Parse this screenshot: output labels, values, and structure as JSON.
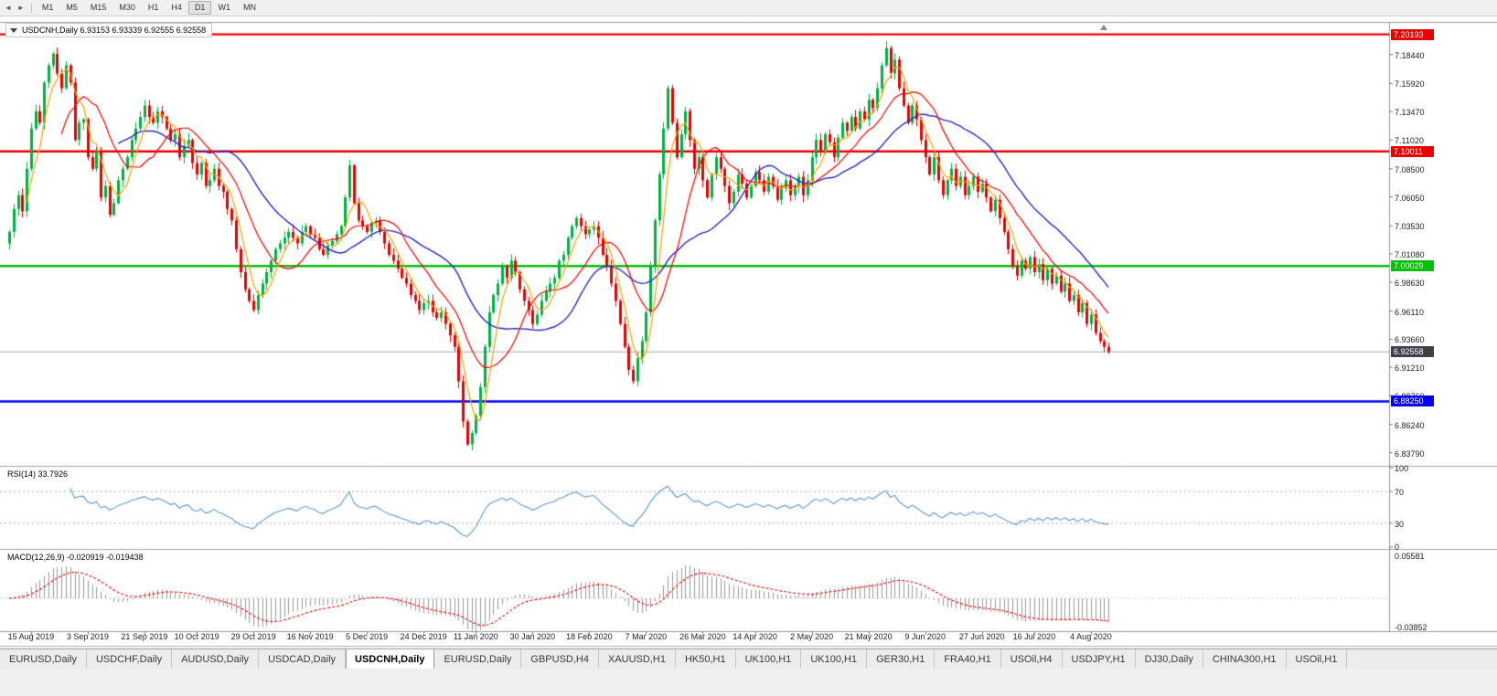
{
  "toolbar": {
    "icons": {
      "back": "◄",
      "forward": "►"
    },
    "timeframes": [
      "M1",
      "M5",
      "M15",
      "M30",
      "H1",
      "H4",
      "D1",
      "W1",
      "MN"
    ],
    "active_timeframe": "D1"
  },
  "chart": {
    "symbol": "USDCNH",
    "period": "Daily",
    "title_text": "USDCNH,Daily 6.93153 6.93339 6.92555 6.92558",
    "ohlc": {
      "open": "6.93153",
      "high": "6.93339",
      "low": "6.92555",
      "close": "6.92558"
    }
  },
  "price_axis_labels": [
    "7.18440",
    "7.15920",
    "7.13470",
    "7.11020",
    "7.08500",
    "7.06050",
    "7.03530",
    "7.01080",
    "6.98630",
    "6.96110",
    "6.93660",
    "6.91210",
    "6.88760",
    "6.86240",
    "6.83790"
  ],
  "levels": [
    {
      "label": "7.20193",
      "value": 7.20193,
      "color": "#e80000"
    },
    {
      "label": "7.10011",
      "value": 7.10011,
      "color": "#e80000"
    },
    {
      "label": "7.00029",
      "value": 7.00029,
      "color": "#00c000"
    },
    {
      "label": "6.88250",
      "value": 6.8825,
      "color": "#0000f0"
    }
  ],
  "current_price": {
    "label": "6.92558",
    "value": 6.92558,
    "bg": "#3c424a"
  },
  "time_axis_labels": [
    "15 Aug 2019",
    "3 Sep 2019",
    "21 Sep 2019",
    "10 Oct 2019",
    "29 Oct 2019",
    "16 Nov 2019",
    "5 Dec 2019",
    "24 Dec 2019",
    "11 Jan 2020",
    "30 Jan 2020",
    "18 Feb 2020",
    "7 Mar 2020",
    "26 Mar 2020",
    "14 Apr 2020",
    "2 May 2020",
    "21 May 2020",
    "9 Jun 2020",
    "27 Jun 2020",
    "16 Jul 2020",
    "4 Aug 2020"
  ],
  "rsi": {
    "label": "RSI(14) 33.7926",
    "period": 14,
    "last_value": "33.7926",
    "scale": [
      {
        "label": "100",
        "value": 100
      },
      {
        "label": "70",
        "value": 70
      },
      {
        "label": "30",
        "value": 30
      },
      {
        "label": "0",
        "value": 0
      }
    ],
    "dashed_levels": [
      70,
      30
    ]
  },
  "macd": {
    "label": "MACD(12,26,9) -0.020919 -0.019438",
    "params": [
      12,
      26,
      9
    ],
    "values": [
      "-0.020919",
      "-0.019438"
    ],
    "scale_top": {
      "label": "0.05581",
      "value": 0.05581
    },
    "scale_bottom": {
      "label": "-0.03852",
      "value": -0.03852
    }
  },
  "tabs": {
    "items": [
      "EURUSD,Daily",
      "USDCHF,Daily",
      "AUDUSD,Daily",
      "USDCAD,Daily",
      "USDCNH,Daily",
      "EURUSD,Daily",
      "GBPUSD,H4",
      "XAUUSD,H1",
      "HK50,H1",
      "UK100,H1",
      "UK100,H1",
      "GER30,H1",
      "FRA40,H1",
      "USOil,H4",
      "USDJPY,H1",
      "DJ30,Daily",
      "CHINA300,H1",
      "USOil,H1"
    ],
    "active_index": 4
  },
  "chart_data": {
    "type": "candlestick",
    "symbol": "USDCNH",
    "timeframe": "Daily",
    "title": "USDCNH,Daily",
    "y_range": [
      6.828,
      7.212
    ],
    "first_open": 7.02,
    "closes": [
      7.03,
      7.05,
      7.062,
      7.048,
      7.085,
      7.12,
      7.135,
      7.125,
      7.16,
      7.175,
      7.185,
      7.168,
      7.155,
      7.175,
      7.16,
      7.11,
      7.125,
      7.128,
      7.095,
      7.085,
      7.1,
      7.06,
      7.07,
      7.045,
      7.055,
      7.075,
      7.085,
      7.095,
      7.11,
      7.12,
      7.13,
      7.14,
      7.13,
      7.125,
      7.135,
      7.13,
      7.12,
      7.11,
      7.115,
      7.095,
      7.105,
      7.11,
      7.09,
      7.08,
      7.09,
      7.07,
      7.075,
      7.085,
      7.07,
      7.065,
      7.05,
      7.04,
      7.015,
      6.995,
      6.98,
      6.97,
      6.962,
      6.975,
      6.985,
      6.995,
      7.005,
      7.015,
      7.02,
      7.025,
      7.03,
      7.025,
      7.02,
      7.03,
      7.035,
      7.028,
      7.025,
      7.015,
      7.01,
      7.018,
      7.022,
      7.028,
      7.035,
      7.06,
      7.088,
      7.055,
      7.04,
      7.035,
      7.03,
      7.038,
      7.04,
      7.03,
      7.02,
      7.01,
      7.005,
      6.998,
      6.99,
      6.985,
      6.975,
      6.97,
      6.962,
      6.968,
      6.97,
      6.96,
      6.955,
      6.96,
      6.95,
      6.94,
      6.93,
      6.9,
      6.865,
      6.845,
      6.855,
      6.87,
      6.895,
      6.93,
      6.96,
      6.975,
      6.985,
      7.0,
      6.99,
      7.005,
      6.995,
      6.98,
      6.97,
      6.962,
      6.95,
      6.958,
      6.97,
      6.978,
      6.985,
      6.99,
      7.005,
      7.01,
      7.025,
      7.035,
      7.042,
      7.035,
      7.028,
      7.032,
      7.035,
      7.025,
      7.01,
      7.0,
      6.985,
      6.97,
      6.95,
      6.93,
      6.91,
      6.9,
      6.92,
      6.935,
      6.96,
      7.0,
      7.04,
      7.08,
      7.12,
      7.155,
      7.125,
      7.095,
      7.115,
      7.135,
      7.11,
      7.085,
      7.095,
      7.075,
      7.06,
      7.08,
      7.095,
      7.085,
      7.07,
      7.055,
      7.065,
      7.08,
      7.072,
      7.06,
      7.07,
      7.082,
      7.075,
      7.065,
      7.078,
      7.07,
      7.058,
      7.068,
      7.075,
      7.062,
      7.07,
      7.078,
      7.062,
      7.075,
      7.095,
      7.11,
      7.1,
      7.115,
      7.108,
      7.095,
      7.112,
      7.125,
      7.118,
      7.13,
      7.12,
      7.135,
      7.128,
      7.145,
      7.138,
      7.155,
      7.175,
      7.19,
      7.168,
      7.18,
      7.155,
      7.14,
      7.125,
      7.14,
      7.128,
      7.11,
      7.095,
      7.08,
      7.095,
      7.075,
      7.062,
      7.075,
      7.085,
      7.07,
      7.078,
      7.062,
      7.07,
      7.078,
      7.065,
      7.072,
      7.06,
      7.048,
      7.058,
      7.042,
      7.03,
      7.015,
      7.0,
      6.992,
      7.005,
      6.998,
      7.008,
      6.995,
      7.002,
      6.988,
      6.998,
      6.985,
      6.992,
      6.978,
      6.985,
      6.97,
      6.975,
      6.96,
      6.968,
      6.95,
      6.958,
      6.942,
      6.935,
      6.93,
      6.9256
    ],
    "indicators": {
      "ma_fast": 5,
      "ma_mid": 13,
      "ma_slow": 26,
      "rsi_period": 14,
      "macd": [
        12,
        26,
        9
      ]
    },
    "colors": {
      "up": "#00b140",
      "down": "#e60000",
      "ma_fast": "#ffa200",
      "ma_mid": "#ff0000",
      "ma_slow": "#2828c8",
      "rsi": "#5b9bd5",
      "macd_hist": "#999999",
      "macd_signal": "#ff0000",
      "current_line": "#a8a8a8"
    }
  }
}
